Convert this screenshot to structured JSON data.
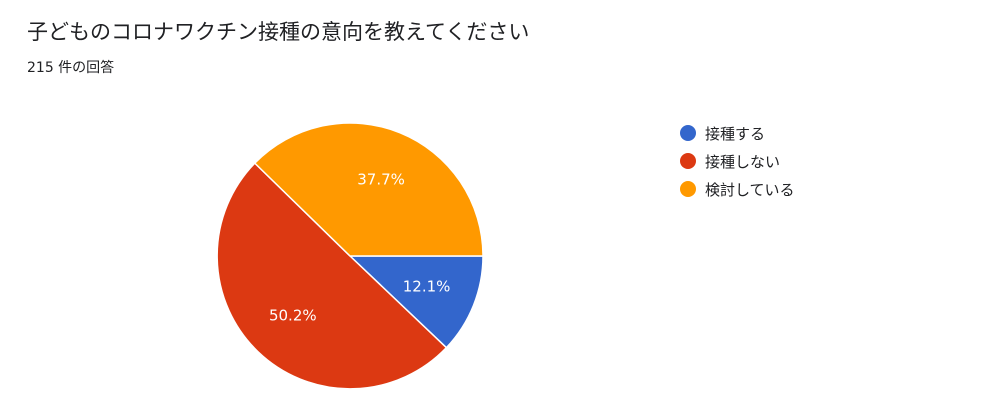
{
  "chart_data": {
    "type": "pie",
    "title": "子どものコロナワクチン接種の意向を教えてください",
    "subtitle": "215 件の回答",
    "slices": [
      {
        "label": "接種する",
        "value": 12.1,
        "value_label": "12.1%",
        "color": "#3366cc"
      },
      {
        "label": "接種しない",
        "value": 50.2,
        "value_label": "50.2%",
        "color": "#dc3912"
      },
      {
        "label": "検討している",
        "value": 37.7,
        "value_label": "37.7%",
        "color": "#ff9900"
      }
    ],
    "legend_position": "right",
    "start_angle": "90° clockwise from top (3 o'clock)"
  }
}
